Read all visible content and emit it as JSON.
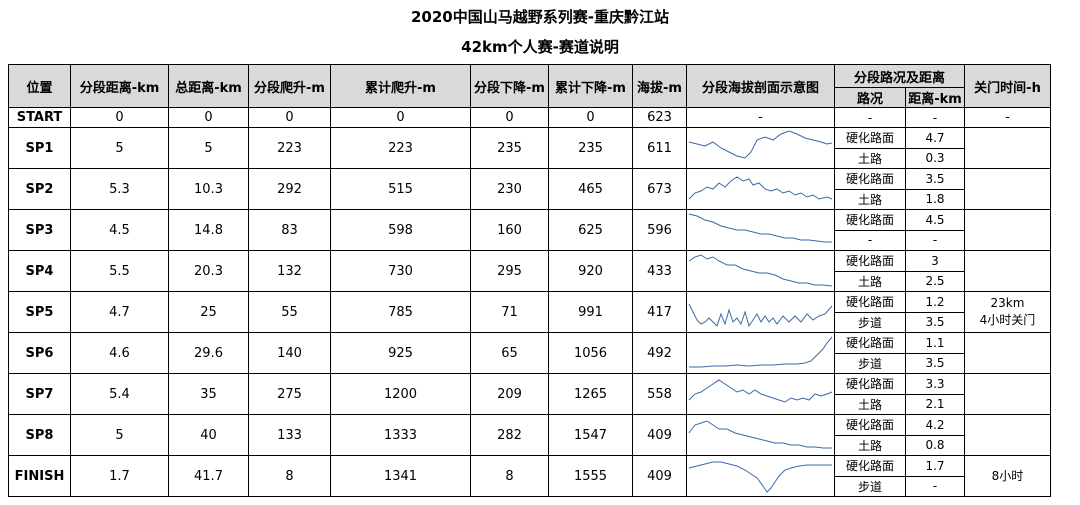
{
  "title": "2020中国山马越野系列赛-重庆黔江站",
  "subtitle": "42km个人赛-赛道说明",
  "headers": {
    "position": "位置",
    "seg_dist": "分段距离-km",
    "total_dist": "总距离-km",
    "seg_climb": "分段爬升-m",
    "cum_climb": "累计爬升-m",
    "seg_descent": "分段下降-m",
    "cum_descent": "累计下降-m",
    "altitude": "海拔-m",
    "profile": "分段海拔剖面示意图",
    "road_group": "分段路况及距离",
    "road_type": "路况",
    "road_dist": "距离-km",
    "cutoff": "关门时间-h"
  },
  "start": {
    "name": "START",
    "seg_dist": "0",
    "total_dist": "0",
    "seg_climb": "0",
    "cum_climb": "0",
    "seg_descent": "0",
    "cum_descent": "0",
    "altitude": "623",
    "profile": "-",
    "road_type": "-",
    "road_dist": "-",
    "cutoff": "-"
  },
  "rows": [
    {
      "name": "SP1",
      "seg_dist": "5",
      "total_dist": "5",
      "seg_climb": "223",
      "cum_climb": "223",
      "seg_descent": "235",
      "cum_descent": "235",
      "altitude": "611",
      "roads": [
        {
          "type": "硬化路面",
          "dist": "4.7"
        },
        {
          "type": "土路",
          "dist": "0.3"
        }
      ],
      "cutoff_line1": "",
      "cutoff_line2": ""
    },
    {
      "name": "SP2",
      "seg_dist": "5.3",
      "total_dist": "10.3",
      "seg_climb": "292",
      "cum_climb": "515",
      "seg_descent": "230",
      "cum_descent": "465",
      "altitude": "673",
      "roads": [
        {
          "type": "硬化路面",
          "dist": "3.5"
        },
        {
          "type": "土路",
          "dist": "1.8"
        }
      ],
      "cutoff_line1": "",
      "cutoff_line2": ""
    },
    {
      "name": "SP3",
      "seg_dist": "4.5",
      "total_dist": "14.8",
      "seg_climb": "83",
      "cum_climb": "598",
      "seg_descent": "160",
      "cum_descent": "625",
      "altitude": "596",
      "roads": [
        {
          "type": "硬化路面",
          "dist": "4.5"
        },
        {
          "type": "-",
          "dist": "-"
        }
      ],
      "cutoff_line1": "",
      "cutoff_line2": ""
    },
    {
      "name": "SP4",
      "seg_dist": "5.5",
      "total_dist": "20.3",
      "seg_climb": "132",
      "cum_climb": "730",
      "seg_descent": "295",
      "cum_descent": "920",
      "altitude": "433",
      "roads": [
        {
          "type": "硬化路面",
          "dist": "3"
        },
        {
          "type": "土路",
          "dist": "2.5"
        }
      ],
      "cutoff_line1": "",
      "cutoff_line2": ""
    },
    {
      "name": "SP5",
      "seg_dist": "4.7",
      "total_dist": "25",
      "seg_climb": "55",
      "cum_climb": "785",
      "seg_descent": "71",
      "cum_descent": "991",
      "altitude": "417",
      "roads": [
        {
          "type": "硬化路面",
          "dist": "1.2"
        },
        {
          "type": "步道",
          "dist": "3.5"
        }
      ],
      "cutoff_line1": "23km",
      "cutoff_line2": "4小时关门"
    },
    {
      "name": "SP6",
      "seg_dist": "4.6",
      "total_dist": "29.6",
      "seg_climb": "140",
      "cum_climb": "925",
      "seg_descent": "65",
      "cum_descent": "1056",
      "altitude": "492",
      "roads": [
        {
          "type": "硬化路面",
          "dist": "1.1"
        },
        {
          "type": "步道",
          "dist": "3.5"
        }
      ],
      "cutoff_line1": "",
      "cutoff_line2": ""
    },
    {
      "name": "SP7",
      "seg_dist": "5.4",
      "total_dist": "35",
      "seg_climb": "275",
      "cum_climb": "1200",
      "seg_descent": "209",
      "cum_descent": "1265",
      "altitude": "558",
      "roads": [
        {
          "type": "硬化路面",
          "dist": "3.3"
        },
        {
          "type": "土路",
          "dist": "2.1"
        }
      ],
      "cutoff_line1": "",
      "cutoff_line2": ""
    },
    {
      "name": "SP8",
      "seg_dist": "5",
      "total_dist": "40",
      "seg_climb": "133",
      "cum_climb": "1333",
      "seg_descent": "282",
      "cum_descent": "1547",
      "altitude": "409",
      "roads": [
        {
          "type": "硬化路面",
          "dist": "4.2"
        },
        {
          "type": "土路",
          "dist": "0.8"
        }
      ],
      "cutoff_line1": "",
      "cutoff_line2": ""
    },
    {
      "name": "FINISH",
      "seg_dist": "1.7",
      "total_dist": "41.7",
      "seg_climb": "8",
      "cum_climb": "1341",
      "seg_descent": "8",
      "cum_descent": "1555",
      "altitude": "409",
      "roads": [
        {
          "type": "硬化路面",
          "dist": "1.7"
        },
        {
          "type": "步道",
          "dist": "-"
        }
      ],
      "cutoff_line1": "8小时",
      "cutoff_line2": ""
    }
  ],
  "colors": {
    "header_bg": "#d9d9d9",
    "profile_line": "#3a6aa8",
    "border": "#000000"
  }
}
